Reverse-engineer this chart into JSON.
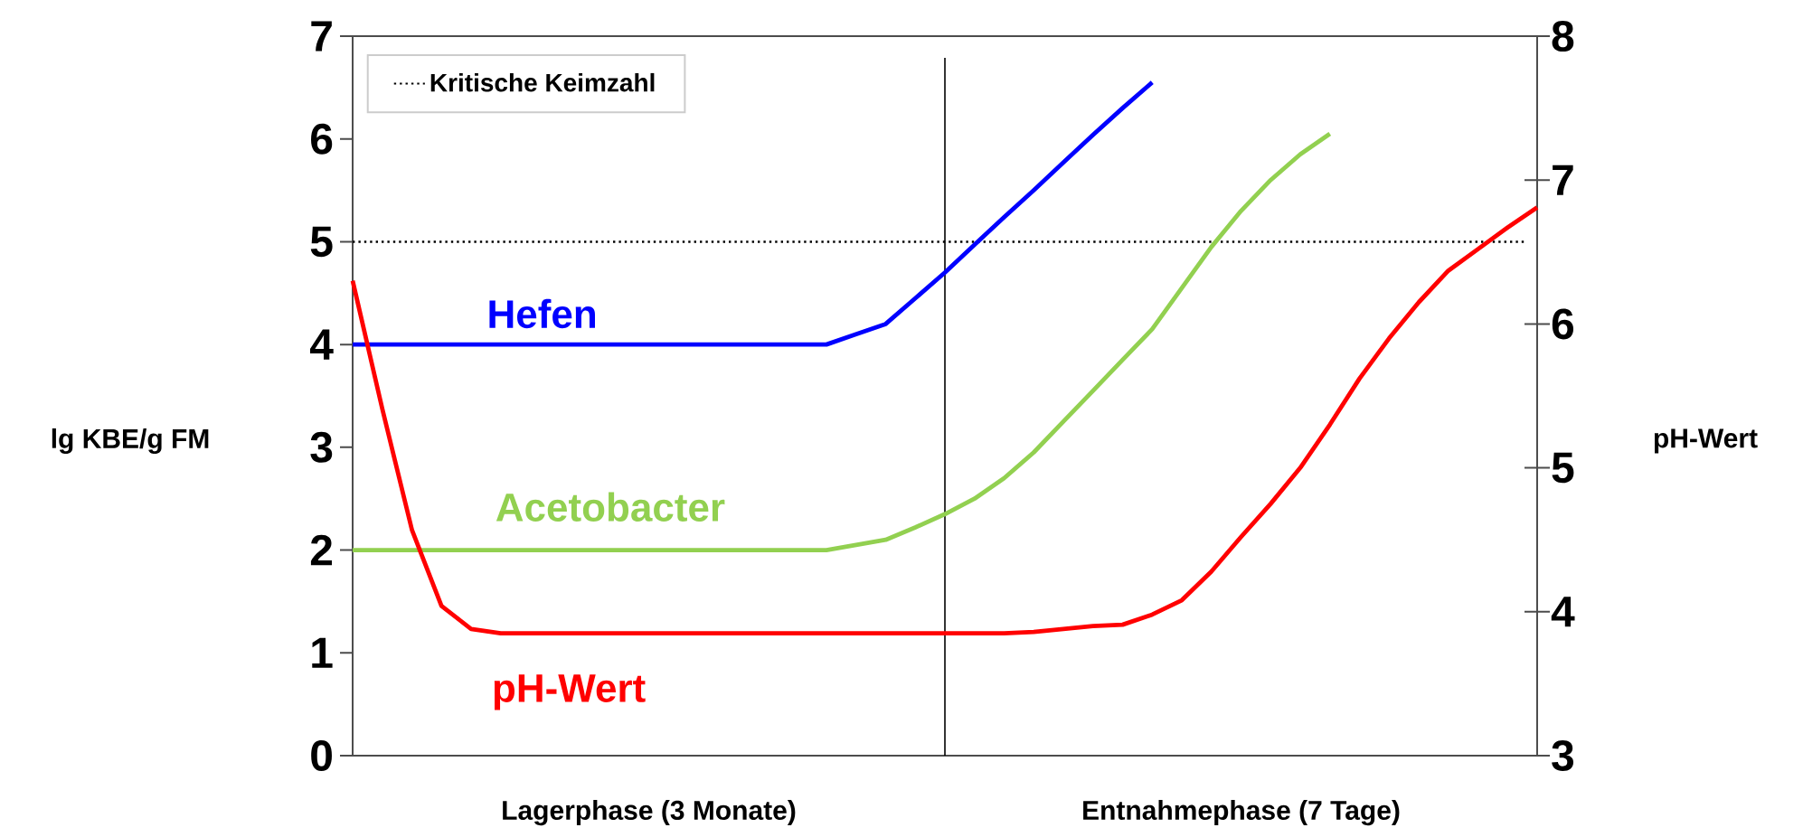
{
  "chart_data": {
    "type": "line",
    "ylabel": "lg KBE/g FM",
    "y2label": "pH-Wert",
    "categories": [
      null,
      null,
      null,
      null,
      null,
      null,
      null,
      null,
      null,
      null,
      "Lagerphase (3 Monate)",
      null,
      null,
      null,
      null,
      null,
      null,
      null,
      null,
      null,
      null,
      null,
      null,
      null,
      null,
      null,
      null,
      null,
      null,
      null,
      "Entnahmephase (7 Tage)",
      null,
      null,
      null,
      null,
      null,
      null,
      null,
      null,
      null,
      null
    ],
    "ylim": [
      0,
      7
    ],
    "yticks": [
      0,
      1,
      2,
      3,
      4,
      5,
      6,
      7
    ],
    "y2lim": [
      3,
      8
    ],
    "y2ticks": [
      3,
      4,
      5,
      6,
      7,
      8
    ],
    "legend": "top left",
    "ref_lines": [
      {
        "axis": "y",
        "value": 5,
        "label": "Kritische Keimzahl",
        "color": "#000000",
        "line_style": "dotted"
      }
    ],
    "series": [
      {
        "name": "Hefen",
        "color": "#0000ff",
        "values": [
          4,
          4,
          4,
          4,
          4,
          4,
          4,
          4,
          4,
          4,
          4,
          4,
          4,
          4,
          4,
          4,
          4,
          4.1,
          4.2,
          4.45,
          4.7,
          4.97,
          5.24,
          5.5,
          5.77,
          6.04,
          6.3,
          6.55,
          null,
          null,
          null,
          null,
          null,
          null,
          null,
          null,
          null,
          null,
          null,
          null,
          null
        ]
      },
      {
        "name": "Acetobacter",
        "color": "#92d050",
        "values": [
          2,
          2,
          2,
          2,
          2,
          2,
          2,
          2,
          2,
          2,
          2,
          2,
          2,
          2,
          2,
          2,
          2,
          2.05,
          2.1,
          2.22,
          2.35,
          2.5,
          2.7,
          2.95,
          3.25,
          3.55,
          3.85,
          4.15,
          4.55,
          4.95,
          5.3,
          5.6,
          5.85,
          6.05,
          null,
          null,
          null,
          null,
          null,
          null,
          null
        ]
      },
      {
        "name": "pH-Wert",
        "color": "#ff0000",
        "axis": "y2",
        "values": [
          6.3,
          5.41,
          4.57,
          4.04,
          3.88,
          3.85,
          3.85,
          3.85,
          3.85,
          3.85,
          3.85,
          3.85,
          3.85,
          3.85,
          3.85,
          3.85,
          3.85,
          3.85,
          3.85,
          3.85,
          3.85,
          3.85,
          3.85,
          3.86,
          3.88,
          3.9,
          3.91,
          3.98,
          4.08,
          4.28,
          4.52,
          4.75,
          5.0,
          5.3,
          5.62,
          5.9,
          6.15,
          6.37,
          6.52,
          6.67,
          6.81
        ]
      }
    ]
  }
}
